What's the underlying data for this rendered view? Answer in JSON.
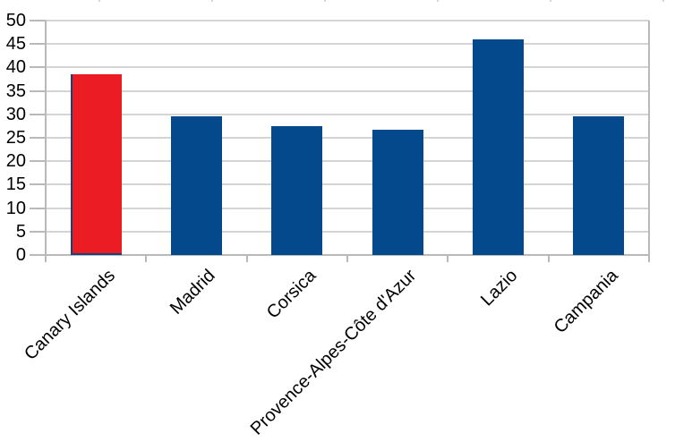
{
  "chart_data": {
    "type": "bar",
    "title": "",
    "xlabel": "",
    "ylabel": "",
    "categories": [
      "Canary Islands",
      "Madrid",
      "Corsica",
      "Provence-Alpes-Côte d'Azur",
      "Lazio",
      "Campania"
    ],
    "values": [
      38.6,
      29.5,
      27.4,
      26.7,
      45.9,
      29.5
    ],
    "bar_colors": [
      "#ec1c24",
      "#04498b",
      "#04498b",
      "#04498b",
      "#04498b",
      "#04498b"
    ],
    "highlight_index": 0,
    "highlighted_category": "Canary Islands",
    "ylim": [
      0,
      50
    ],
    "ytick_step": 5,
    "y_ticks": [
      0,
      5,
      10,
      15,
      20,
      25,
      30,
      35,
      40,
      45,
      50
    ],
    "grid": true,
    "legend": "none",
    "x_label_rotation_deg": -45
  },
  "colors": {
    "highlight_bar": "#ec1c24",
    "default_bar": "#04498b",
    "highlight_edge": "#14427c",
    "gridline": "#d4d4d4",
    "axis": "#b9b9b9",
    "tick_label": "#000000",
    "background": "#ffffff"
  },
  "artifacts": {
    "top_crop_marks_x": [
      110,
      236,
      362,
      488,
      614,
      740
    ]
  }
}
